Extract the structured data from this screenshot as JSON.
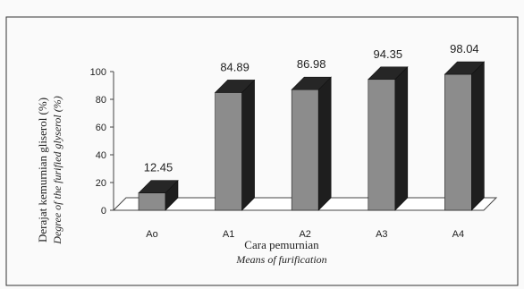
{
  "chart_data": {
    "type": "bar",
    "categories": [
      "Ao",
      "A1",
      "A2",
      "A3",
      "A4"
    ],
    "values": [
      12.45,
      84.89,
      86.98,
      94.35,
      98.04
    ],
    "data_labels": [
      "12.45",
      "84.89",
      "86.98",
      "94.35",
      "98.04"
    ],
    "title": "",
    "xlabel": "Cara pemurnian",
    "xlabel_en": "Means of furification",
    "ylabel": "Derajat kemurnian gliserol (%)",
    "ylabel_en": "Degree of the furified glyserol (%)",
    "ylim": [
      0,
      100
    ],
    "yticks": [
      0,
      20,
      40,
      60,
      80,
      100
    ],
    "grid": false,
    "legend": "none",
    "bar_style": "3d",
    "colors": {
      "bar_front": "#8c8c8c",
      "bar_side": "#1e1e1e",
      "bar_top": "#262626",
      "frame": "#333333"
    }
  }
}
